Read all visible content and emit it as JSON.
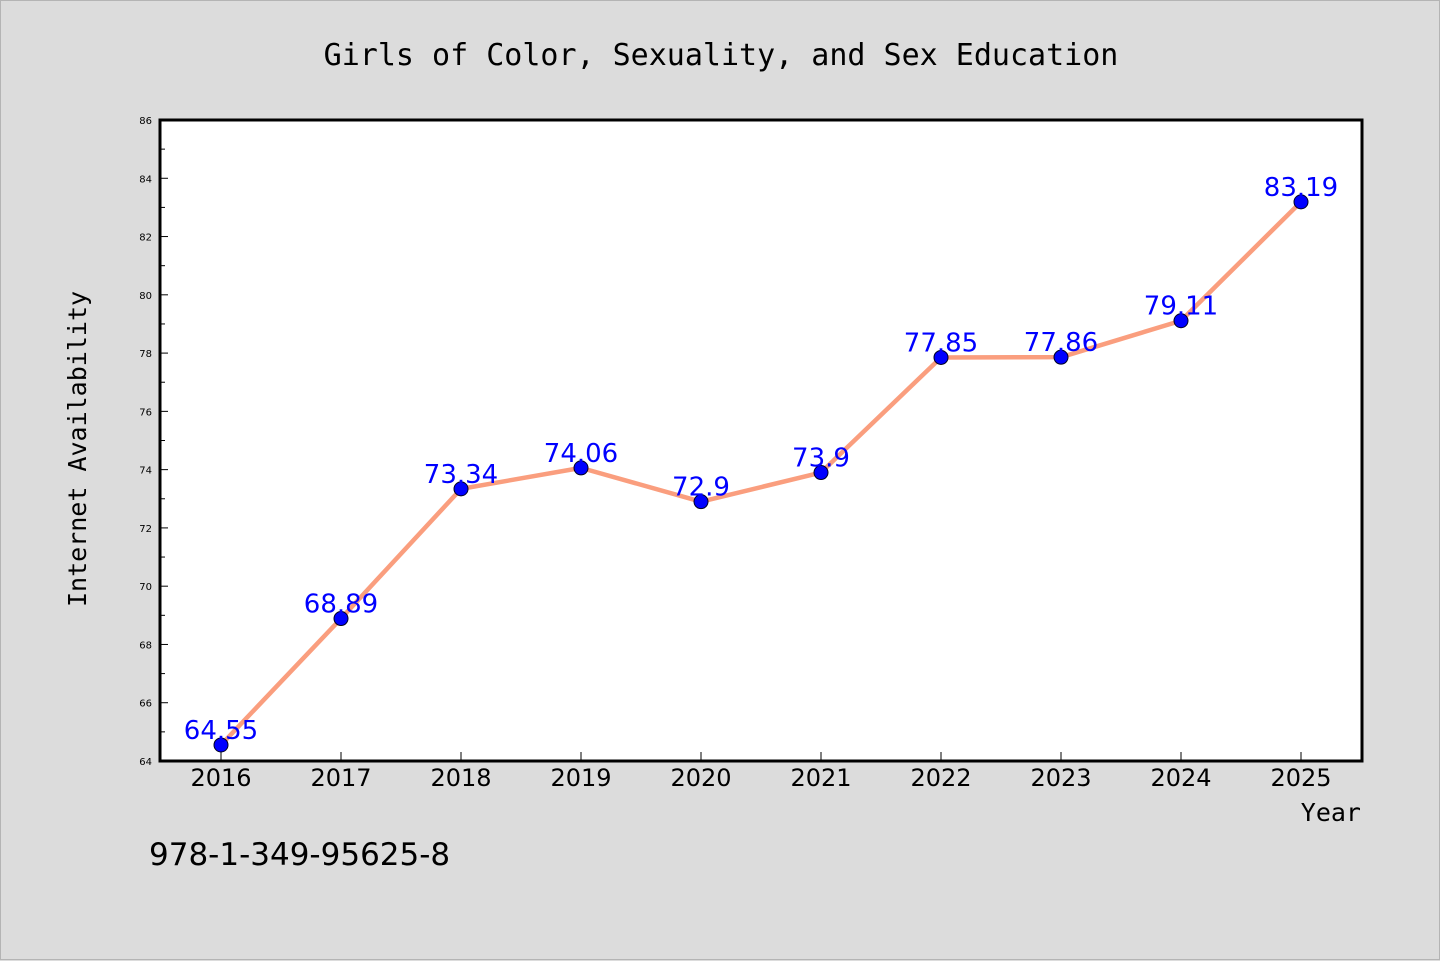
{
  "chart_data": {
    "type": "line",
    "title": "Girls of Color, Sexuality, and Sex Education",
    "xlabel": "Year",
    "ylabel": "Internet Availability",
    "x": [
      "2016",
      "2017",
      "2018",
      "2019",
      "2020",
      "2021",
      "2022",
      "2023",
      "2024",
      "2025"
    ],
    "series": [
      {
        "values": [
          64.55,
          68.89,
          73.34,
          74.06,
          72.9,
          73.9,
          77.85,
          77.86,
          79.11,
          83.19
        ],
        "labels": [
          "64.55",
          "68.89",
          "73.34",
          "74.06",
          "72.9",
          "73.9",
          "77.85",
          "77.86",
          "79.11",
          "83.19"
        ]
      }
    ],
    "ylim": [
      64,
      86
    ],
    "yticks": [
      "64",
      "66",
      "68",
      "70",
      "72",
      "74",
      "76",
      "78",
      "80",
      "82",
      "84",
      "86"
    ],
    "grid": false,
    "line_color": "#fa9e7e",
    "marker_color": "#0000ff",
    "label_color": "#0000ff"
  },
  "footer_text": "978-1-349-95625-8"
}
